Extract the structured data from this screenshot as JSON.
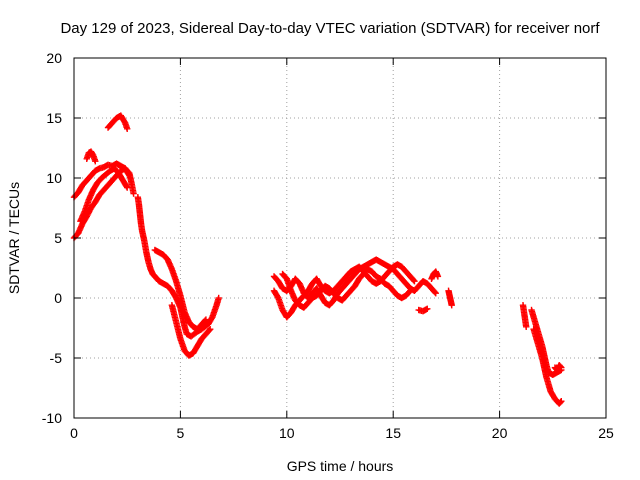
{
  "chart_data": {
    "type": "scatter",
    "title": "Day 129 of 2023, Sidereal Day-to-day VTEC variation (SDTVAR) for receiver norf",
    "xlabel": "GPS time / hours",
    "ylabel": "SDTVAR / TECUs",
    "xlim": [
      0,
      25
    ],
    "ylim": [
      -10,
      20
    ],
    "xticks": [
      0,
      5,
      10,
      15,
      20,
      25
    ],
    "yticks": [
      -10,
      -5,
      0,
      5,
      10,
      15,
      20
    ],
    "xtick_labels": [
      "0",
      "5",
      "10",
      "15",
      "20",
      "25"
    ],
    "ytick_labels": [
      "-10",
      "-5",
      "0",
      "5",
      "10",
      "15",
      "20"
    ],
    "grid": true,
    "marker": "plus",
    "marker_color": "#ff0000",
    "series": [
      {
        "name": "SDTVAR",
        "tracks": [
          [
            [
              0.0,
              5.0
            ],
            [
              0.2,
              5.4
            ],
            [
              0.4,
              6.2
            ],
            [
              0.6,
              6.8
            ],
            [
              0.8,
              7.5
            ],
            [
              1.0,
              8.0
            ],
            [
              1.2,
              8.6
            ],
            [
              1.4,
              9.0
            ],
            [
              1.6,
              9.4
            ],
            [
              1.8,
              9.8
            ],
            [
              2.0,
              10.2
            ],
            [
              2.2,
              10.6
            ],
            [
              2.4,
              10.8
            ],
            [
              2.6,
              10.4
            ],
            [
              2.7,
              9.6
            ],
            [
              2.8,
              8.7
            ]
          ],
          [
            [
              0.0,
              8.4
            ],
            [
              0.2,
              8.8
            ],
            [
              0.4,
              9.4
            ],
            [
              0.6,
              9.8
            ],
            [
              0.8,
              10.2
            ],
            [
              1.0,
              10.6
            ],
            [
              1.2,
              10.8
            ],
            [
              1.4,
              10.9
            ],
            [
              1.6,
              11.1
            ],
            [
              1.8,
              11.0
            ],
            [
              2.0,
              11.2
            ],
            [
              2.2,
              11.0
            ],
            [
              2.4,
              10.8
            ],
            [
              2.6,
              10.2
            ]
          ],
          [
            [
              0.3,
              6.4
            ],
            [
              0.5,
              7.2
            ],
            [
              0.7,
              8.2
            ],
            [
              0.9,
              9.0
            ],
            [
              1.1,
              9.6
            ],
            [
              1.3,
              10.0
            ],
            [
              1.5,
              10.3
            ],
            [
              1.7,
              10.6
            ],
            [
              1.9,
              10.8
            ],
            [
              2.1,
              10.4
            ],
            [
              2.3,
              9.8
            ],
            [
              2.5,
              9.2
            ]
          ],
          [
            [
              0.6,
              11.6
            ],
            [
              0.7,
              12.1
            ],
            [
              0.8,
              12.2
            ],
            [
              0.9,
              11.9
            ],
            [
              1.0,
              11.4
            ]
          ],
          [
            [
              1.6,
              14.2
            ],
            [
              1.8,
              14.6
            ],
            [
              2.0,
              15.0
            ],
            [
              2.2,
              15.2
            ],
            [
              2.4,
              14.6
            ],
            [
              2.5,
              14.1
            ]
          ],
          [
            [
              3.0,
              8.4
            ],
            [
              3.05,
              7.8
            ],
            [
              3.1,
              7.0
            ],
            [
              3.15,
              6.2
            ],
            [
              3.2,
              5.6
            ],
            [
              3.3,
              4.8
            ],
            [
              3.4,
              3.8
            ],
            [
              3.5,
              3.0
            ],
            [
              3.6,
              2.4
            ],
            [
              3.7,
              2.0
            ],
            [
              3.8,
              1.8
            ],
            [
              3.9,
              1.6
            ],
            [
              4.0,
              1.4
            ],
            [
              4.2,
              1.2
            ],
            [
              4.4,
              1.0
            ],
            [
              4.6,
              0.6
            ],
            [
              4.8,
              0.0
            ],
            [
              5.0,
              -0.8
            ],
            [
              5.1,
              -1.6
            ],
            [
              5.2,
              -2.4
            ],
            [
              5.3,
              -3.0
            ],
            [
              5.5,
              -3.2
            ],
            [
              5.8,
              -2.8
            ],
            [
              6.0,
              -2.6
            ],
            [
              6.3,
              -2.2
            ],
            [
              6.5,
              -1.6
            ],
            [
              6.7,
              -0.6
            ],
            [
              6.8,
              0.0
            ]
          ],
          [
            [
              3.8,
              4.0
            ],
            [
              4.0,
              3.8
            ],
            [
              4.2,
              3.6
            ],
            [
              4.4,
              3.2
            ],
            [
              4.6,
              2.4
            ],
            [
              4.8,
              1.4
            ],
            [
              5.0,
              0.2
            ],
            [
              5.2,
              -1.2
            ],
            [
              5.4,
              -2.0
            ],
            [
              5.6,
              -2.4
            ],
            [
              5.8,
              -2.6
            ],
            [
              6.0,
              -2.2
            ],
            [
              6.2,
              -1.8
            ]
          ],
          [
            [
              4.6,
              -0.6
            ],
            [
              4.8,
              -2.0
            ],
            [
              5.0,
              -3.4
            ],
            [
              5.2,
              -4.4
            ],
            [
              5.4,
              -4.8
            ],
            [
              5.6,
              -4.6
            ],
            [
              5.8,
              -4.0
            ],
            [
              6.0,
              -3.4
            ],
            [
              6.2,
              -3.0
            ],
            [
              6.4,
              -2.6
            ]
          ],
          [
            [
              9.4,
              1.8
            ],
            [
              9.6,
              1.4
            ],
            [
              9.8,
              0.8
            ],
            [
              10.0,
              0.6
            ],
            [
              10.2,
              1.0
            ],
            [
              10.4,
              1.6
            ],
            [
              10.6,
              1.2
            ],
            [
              10.8,
              0.4
            ],
            [
              11.0,
              0.0
            ],
            [
              11.2,
              0.4
            ],
            [
              11.4,
              0.8
            ],
            [
              11.6,
              0.2
            ],
            [
              11.8,
              -0.4
            ],
            [
              12.0,
              -0.6
            ],
            [
              12.2,
              -0.2
            ],
            [
              12.4,
              0.4
            ],
            [
              12.6,
              0.8
            ],
            [
              12.8,
              1.2
            ],
            [
              13.0,
              1.6
            ],
            [
              13.2,
              2.0
            ],
            [
              13.4,
              2.4
            ],
            [
              13.6,
              2.6
            ],
            [
              13.8,
              2.8
            ],
            [
              14.0,
              3.0
            ],
            [
              14.2,
              3.2
            ],
            [
              14.4,
              3.0
            ],
            [
              14.6,
              2.8
            ],
            [
              14.8,
              2.6
            ],
            [
              15.0,
              2.4
            ],
            [
              15.2,
              2.0
            ],
            [
              15.4,
              1.6
            ],
            [
              15.6,
              1.2
            ],
            [
              15.8,
              0.8
            ],
            [
              16.0,
              0.6
            ],
            [
              16.2,
              1.0
            ],
            [
              16.4,
              1.4
            ],
            [
              16.6,
              1.2
            ],
            [
              16.8,
              0.8
            ],
            [
              17.0,
              0.4
            ]
          ],
          [
            [
              9.4,
              0.6
            ],
            [
              9.6,
              0.0
            ],
            [
              9.8,
              -1.0
            ],
            [
              10.0,
              -1.6
            ],
            [
              10.2,
              -1.2
            ],
            [
              10.4,
              -0.6
            ],
            [
              10.6,
              -0.2
            ],
            [
              10.8,
              0.2
            ],
            [
              11.0,
              0.6
            ],
            [
              11.2,
              1.2
            ],
            [
              11.4,
              1.6
            ],
            [
              11.6,
              1.0
            ],
            [
              11.8,
              0.6
            ],
            [
              12.0,
              0.4
            ],
            [
              12.2,
              0.6
            ],
            [
              12.4,
              1.0
            ],
            [
              12.6,
              1.4
            ],
            [
              12.8,
              1.8
            ],
            [
              13.0,
              2.2
            ],
            [
              13.2,
              2.4
            ],
            [
              13.4,
              2.6
            ],
            [
              13.6,
              2.2
            ],
            [
              13.8,
              1.8
            ],
            [
              14.0,
              1.4
            ],
            [
              14.2,
              1.2
            ],
            [
              14.4,
              1.4
            ],
            [
              14.6,
              1.8
            ],
            [
              14.8,
              2.2
            ],
            [
              15.0,
              2.6
            ],
            [
              15.2,
              2.8
            ],
            [
              15.4,
              2.6
            ],
            [
              15.6,
              2.2
            ],
            [
              15.8,
              1.8
            ],
            [
              16.0,
              1.4
            ]
          ],
          [
            [
              9.8,
              2.0
            ],
            [
              10.0,
              1.6
            ],
            [
              10.2,
              0.6
            ],
            [
              10.4,
              -0.2
            ],
            [
              10.6,
              -0.6
            ],
            [
              10.8,
              -0.8
            ],
            [
              11.0,
              -0.4
            ],
            [
              11.2,
              0.0
            ],
            [
              11.4,
              0.2
            ],
            [
              11.6,
              0.6
            ],
            [
              11.8,
              1.0
            ],
            [
              12.0,
              0.8
            ],
            [
              12.2,
              0.4
            ],
            [
              12.4,
              0.0
            ],
            [
              12.6,
              -0.2
            ],
            [
              12.8,
              0.2
            ],
            [
              13.0,
              0.6
            ],
            [
              13.2,
              1.0
            ],
            [
              13.4,
              1.6
            ],
            [
              13.6,
              2.0
            ],
            [
              13.8,
              2.4
            ],
            [
              14.0,
              2.2
            ],
            [
              14.2,
              1.8
            ],
            [
              14.4,
              1.6
            ],
            [
              14.6,
              1.2
            ],
            [
              14.8,
              1.0
            ],
            [
              15.0,
              0.6
            ],
            [
              15.2,
              0.2
            ],
            [
              15.4,
              0.0
            ],
            [
              15.6,
              0.2
            ],
            [
              15.8,
              0.6
            ]
          ],
          [
            [
              16.2,
              -1.0
            ],
            [
              16.4,
              -1.1
            ],
            [
              16.6,
              -0.9
            ]
          ],
          [
            [
              16.8,
              1.6
            ],
            [
              16.9,
              2.0
            ],
            [
              17.0,
              2.2
            ],
            [
              17.1,
              1.8
            ]
          ],
          [
            [
              17.6,
              0.6
            ],
            [
              17.65,
              0.2
            ],
            [
              17.7,
              -0.2
            ],
            [
              17.75,
              -0.6
            ]
          ],
          [
            [
              21.1,
              -0.6
            ],
            [
              21.15,
              -1.2
            ],
            [
              21.2,
              -1.8
            ],
            [
              21.25,
              -2.4
            ]
          ],
          [
            [
              21.5,
              -1.0
            ],
            [
              21.6,
              -1.6
            ],
            [
              21.7,
              -2.2
            ],
            [
              21.8,
              -2.8
            ],
            [
              21.9,
              -3.4
            ],
            [
              22.0,
              -4.0
            ],
            [
              22.1,
              -4.8
            ],
            [
              22.2,
              -5.6
            ],
            [
              22.3,
              -6.2
            ],
            [
              22.5,
              -6.4
            ],
            [
              22.7,
              -6.2
            ],
            [
              22.9,
              -6.0
            ]
          ],
          [
            [
              21.6,
              -2.6
            ],
            [
              21.7,
              -3.2
            ],
            [
              21.8,
              -3.8
            ],
            [
              21.9,
              -4.4
            ],
            [
              22.0,
              -5.0
            ],
            [
              22.1,
              -5.8
            ],
            [
              22.2,
              -6.6
            ],
            [
              22.3,
              -7.2
            ],
            [
              22.4,
              -7.8
            ],
            [
              22.6,
              -8.4
            ],
            [
              22.8,
              -8.8
            ],
            [
              22.9,
              -8.6
            ]
          ],
          [
            [
              22.6,
              -5.8
            ],
            [
              22.7,
              -6.0
            ],
            [
              22.8,
              -5.6
            ],
            [
              22.9,
              -5.8
            ]
          ]
        ]
      }
    ]
  }
}
